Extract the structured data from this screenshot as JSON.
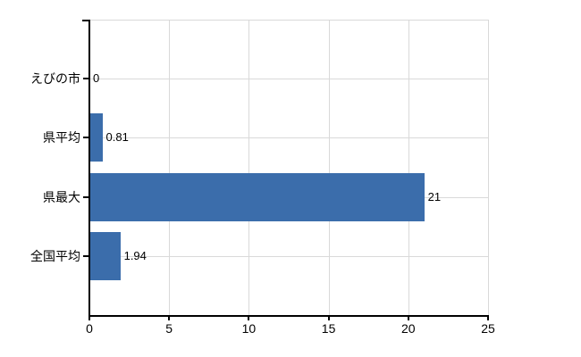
{
  "chart_data": {
    "type": "bar",
    "orientation": "horizontal",
    "categories": [
      "えびの市",
      "県平均",
      "県最大",
      "全国平均"
    ],
    "values": [
      0,
      0.81,
      21,
      1.94
    ],
    "value_labels": [
      "0",
      "0.81",
      "21",
      "1.94"
    ],
    "x_ticks": [
      "0",
      "5",
      "10",
      "15",
      "20",
      "25"
    ],
    "x_tick_values": [
      0,
      5,
      10,
      15,
      20,
      25
    ],
    "xlim": [
      0,
      25
    ],
    "grid": true,
    "legend": "none",
    "colors": {
      "bar": "#3b6dab",
      "grid": "#d9d9d9",
      "axis": "#000000",
      "text": "#000000",
      "background": "#ffffff"
    }
  }
}
